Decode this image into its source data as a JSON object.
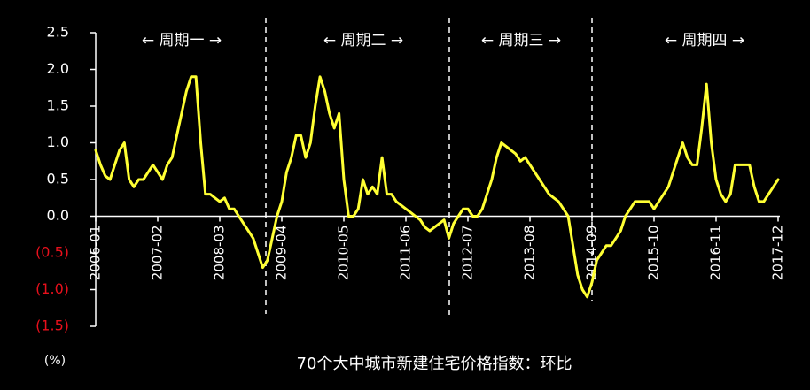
{
  "chart_data": {
    "type": "line",
    "title": "70个大中城市新建住宅价格指数：环比",
    "unit_label": "(%)",
    "annotations": [
      "← 周期一 →",
      "← 周期二 →",
      "← 周期三 →",
      "← 周期四 →"
    ],
    "x": [
      "2006-01",
      "2006-02",
      "2006-03",
      "2006-04",
      "2006-05",
      "2006-06",
      "2006-07",
      "2006-08",
      "2006-09",
      "2006-10",
      "2006-11",
      "2006-12",
      "2007-01",
      "2007-02",
      "2007-03",
      "2007-04",
      "2007-05",
      "2007-06",
      "2007-07",
      "2007-08",
      "2007-09",
      "2007-10",
      "2007-11",
      "2007-12",
      "2008-01",
      "2008-02",
      "2008-03",
      "2008-04",
      "2008-05",
      "2008-06",
      "2008-07",
      "2008-08",
      "2008-09",
      "2008-10",
      "2008-11",
      "2008-12",
      "2009-01",
      "2009-02",
      "2009-03",
      "2009-04",
      "2009-05",
      "2009-06",
      "2009-07",
      "2009-08",
      "2009-09",
      "2009-10",
      "2009-11",
      "2009-12",
      "2010-01",
      "2010-02",
      "2010-03",
      "2010-04",
      "2010-05",
      "2010-06",
      "2010-07",
      "2010-08",
      "2010-09",
      "2010-10",
      "2010-11",
      "2010-12",
      "2011-01",
      "2011-02",
      "2011-03",
      "2011-04",
      "2011-05",
      "2011-06",
      "2011-07",
      "2011-08",
      "2011-09",
      "2011-10",
      "2011-11",
      "2011-12",
      "2012-01",
      "2012-02",
      "2012-03",
      "2012-04",
      "2012-05",
      "2012-06",
      "2012-07",
      "2012-08",
      "2012-09",
      "2012-10",
      "2012-11",
      "2012-12",
      "2013-01",
      "2013-02",
      "2013-03",
      "2013-04",
      "2013-05",
      "2013-06",
      "2013-07",
      "2013-08",
      "2013-09",
      "2013-10",
      "2013-11",
      "2013-12",
      "2014-01",
      "2014-02",
      "2014-03",
      "2014-04",
      "2014-05",
      "2014-06",
      "2014-07",
      "2014-08",
      "2014-09",
      "2014-10",
      "2014-11",
      "2014-12",
      "2015-01",
      "2015-02",
      "2015-03",
      "2015-04",
      "2015-05",
      "2015-06",
      "2015-07",
      "2015-08",
      "2015-09",
      "2015-10",
      "2015-11",
      "2015-12",
      "2016-01",
      "2016-02",
      "2016-03",
      "2016-04",
      "2016-05",
      "2016-06",
      "2016-07",
      "2016-08",
      "2016-09",
      "2016-10",
      "2016-11",
      "2016-12",
      "2017-01",
      "2017-02",
      "2017-03",
      "2017-04",
      "2017-05",
      "2017-06",
      "2017-07",
      "2017-08",
      "2017-09",
      "2017-10",
      "2017-11",
      "2017-12"
    ],
    "values": [
      0.9,
      0.7,
      0.55,
      0.5,
      0.7,
      0.9,
      1.0,
      0.5,
      0.4,
      0.5,
      0.5,
      0.6,
      0.7,
      0.6,
      0.5,
      0.7,
      0.8,
      1.1,
      1.4,
      1.7,
      1.9,
      1.9,
      1.0,
      0.3,
      0.3,
      0.25,
      0.2,
      0.25,
      0.1,
      0.1,
      0.0,
      -0.1,
      -0.2,
      -0.3,
      -0.5,
      -0.7,
      -0.6,
      -0.3,
      0.0,
      0.2,
      0.6,
      0.8,
      1.1,
      1.1,
      0.8,
      1.0,
      1.5,
      1.9,
      1.7,
      1.4,
      1.2,
      1.4,
      0.5,
      0.0,
      0.0,
      0.1,
      0.5,
      0.3,
      0.4,
      0.3,
      0.8,
      0.3,
      0.3,
      0.2,
      0.15,
      0.1,
      0.05,
      0.0,
      -0.05,
      -0.15,
      -0.2,
      -0.15,
      -0.1,
      -0.05,
      -0.3,
      -0.1,
      0.0,
      0.1,
      0.1,
      0.0,
      0.0,
      0.1,
      0.3,
      0.5,
      0.8,
      1.0,
      0.95,
      0.9,
      0.85,
      0.75,
      0.8,
      0.7,
      0.6,
      0.5,
      0.4,
      0.3,
      0.25,
      0.2,
      0.1,
      0.0,
      -0.4,
      -0.8,
      -1.0,
      -1.1,
      -0.9,
      -0.6,
      -0.5,
      -0.4,
      -0.4,
      -0.3,
      -0.2,
      0.0,
      0.1,
      0.2,
      0.2,
      0.2,
      0.2,
      0.1,
      0.2,
      0.3,
      0.4,
      0.6,
      0.8,
      1.0,
      0.8,
      0.7,
      0.7,
      1.2,
      1.8,
      1.0,
      0.5,
      0.3,
      0.2,
      0.3,
      0.7,
      0.7,
      0.7,
      0.7,
      0.4,
      0.2,
      0.2,
      0.3,
      0.4,
      0.5
    ],
    "color": "#ffff33",
    "xticks": [
      "2006-01",
      "2007-02",
      "2008-03",
      "2009-04",
      "2010-05",
      "2011-06",
      "2012-07",
      "2013-08",
      "2014-09",
      "2015-10",
      "2016-11",
      "2017-12"
    ],
    "ylim": [
      -1.5,
      2.5
    ],
    "yticks": [
      {
        "value": 2.5,
        "label": "2.5"
      },
      {
        "value": 2,
        "label": "2.0"
      },
      {
        "value": 1.5,
        "label": "1.5"
      },
      {
        "value": 1,
        "label": "1.0"
      },
      {
        "value": 0.5,
        "label": "0.5"
      },
      {
        "value": 0,
        "label": "0.0"
      },
      {
        "value": -0.5,
        "label": "(0.5)"
      },
      {
        "value": -1,
        "label": "(1.0)"
      },
      {
        "value": -1.5,
        "label": "(1.5)"
      }
    ],
    "tick_color": "#ffffff",
    "negative_tick_color": "#e8101c"
  }
}
